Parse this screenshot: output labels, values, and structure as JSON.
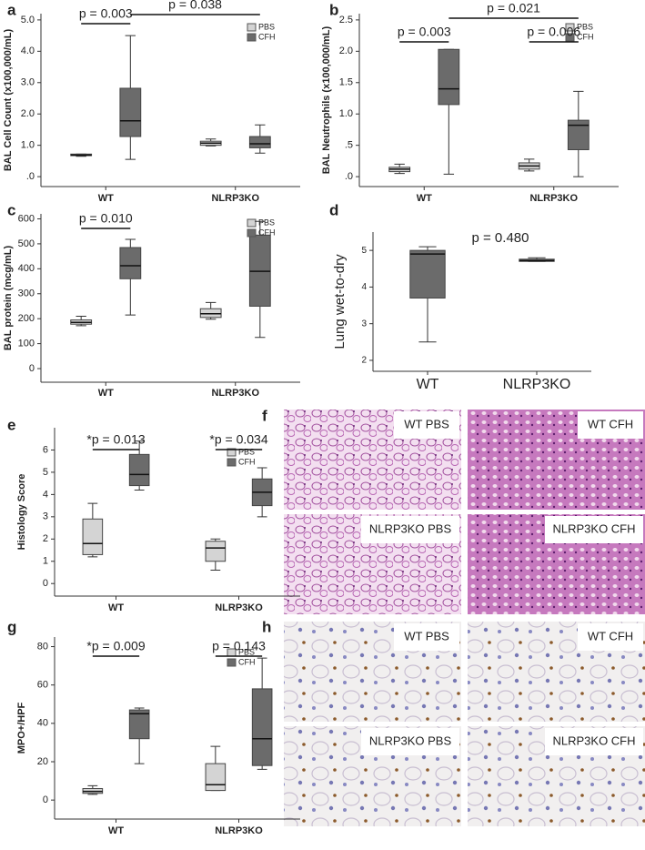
{
  "chart_data": [
    {
      "type": "box",
      "panel": "a",
      "ylabel": "BAL Cell Count (x100,000/mL)",
      "categories": [
        "WT",
        "NLRP3KO"
      ],
      "series": [
        {
          "name": "PBS",
          "color": "#d4d4d4",
          "values": [
            {
              "min": 0.65,
              "q1": 0.67,
              "median": 0.69,
              "q3": 0.72,
              "max": 0.72
            },
            {
              "min": 0.98,
              "q1": 1.0,
              "median": 1.07,
              "q3": 1.13,
              "max": 1.2
            }
          ]
        },
        {
          "name": "CFH",
          "color": "#6b6b6b",
          "values": [
            {
              "min": 0.55,
              "q1": 1.28,
              "median": 1.78,
              "q3": 2.82,
              "max": 4.5
            },
            {
              "min": 0.75,
              "q1": 0.92,
              "median": 1.05,
              "q3": 1.28,
              "max": 1.65
            }
          ]
        }
      ],
      "annotations": [
        "p = 0.003",
        "p = 0.038"
      ],
      "ylim": [
        -0.2,
        5.2
      ],
      "yticks": [
        {
          "value": 0,
          "label": ".0"
        },
        {
          "value": 1,
          "label": "1.0"
        },
        {
          "value": 2,
          "label": "2.0"
        },
        {
          "value": 3,
          "label": "3.0"
        },
        {
          "value": 4,
          "label": "4.0"
        },
        {
          "value": 5,
          "label": "5.0"
        }
      ]
    },
    {
      "type": "box",
      "panel": "b",
      "ylabel": "BAL Neutrophils (x100,000/mL)",
      "categories": [
        "WT",
        "NLRP3KO"
      ],
      "series": [
        {
          "name": "PBS",
          "color": "#d4d4d4",
          "values": [
            {
              "min": 0.05,
              "q1": 0.08,
              "median": 0.12,
              "q3": 0.15,
              "max": 0.2
            },
            {
              "min": 0.09,
              "q1": 0.12,
              "median": 0.17,
              "q3": 0.22,
              "max": 0.28
            }
          ]
        },
        {
          "name": "CFH",
          "color": "#6b6b6b",
          "values": [
            {
              "min": 0.04,
              "q1": 1.15,
              "median": 1.4,
              "q3": 2.03,
              "max": 2.03
            },
            {
              "min": 0.0,
              "q1": 0.43,
              "median": 0.82,
              "q3": 0.9,
              "max": 1.36
            }
          ]
        }
      ],
      "annotations": [
        "p = 0.003",
        "p = 0.006",
        "p = 0.021"
      ],
      "ylim": [
        -0.1,
        2.6
      ],
      "yticks": [
        {
          "value": 0,
          "label": ".0"
        },
        {
          "value": 0.5,
          "label": ".5"
        },
        {
          "value": 1,
          "label": "1.0"
        },
        {
          "value": 1.5,
          "label": "1.5"
        },
        {
          "value": 2,
          "label": "2.0"
        },
        {
          "value": 2.5,
          "label": "2.5"
        }
      ]
    },
    {
      "type": "box",
      "panel": "c",
      "ylabel": "BAL protein (mcg/mL)",
      "categories": [
        "WT",
        "NLRP3KO"
      ],
      "series": [
        {
          "name": "PBS",
          "color": "#d4d4d4",
          "values": [
            {
              "min": 172,
              "q1": 178,
              "median": 185,
              "q3": 195,
              "max": 210
            },
            {
              "min": 198,
              "q1": 205,
              "median": 220,
              "q3": 240,
              "max": 265
            }
          ]
        },
        {
          "name": "CFH",
          "color": "#6b6b6b",
          "values": [
            {
              "min": 215,
              "q1": 360,
              "median": 412,
              "q3": 485,
              "max": 518
            },
            {
              "min": 125,
              "q1": 250,
              "median": 390,
              "q3": 535,
              "max": 590
            }
          ]
        }
      ],
      "annotations": [
        "p = 0.010"
      ],
      "ylim": [
        -40,
        620
      ],
      "yticks": [
        0,
        100,
        200,
        300,
        400,
        500,
        600
      ]
    },
    {
      "type": "box",
      "panel": "d",
      "ylabel": "Lung wet-to-dry",
      "categories": [
        "WT",
        "NLRP3KO"
      ],
      "series": [
        {
          "color": "#6b6b6b",
          "values": [
            {
              "min": 2.5,
              "q1": 3.7,
              "median": 4.9,
              "q3": 5.0,
              "max": 5.1
            },
            {
              "min": 4.7,
              "q1": 4.7,
              "median": 4.72,
              "q3": 4.76,
              "max": 4.8
            }
          ]
        }
      ],
      "annotations": [
        "p = 0.480"
      ],
      "ylim": [
        1.8,
        5.5
      ],
      "yticks": [
        2,
        3,
        4,
        5
      ]
    },
    {
      "type": "box",
      "panel": "e",
      "ylabel": "Histology Score",
      "categories": [
        "WT",
        "NLRP3KO"
      ],
      "series": [
        {
          "name": "PBS",
          "color": "#d4d4d4",
          "values": [
            {
              "min": 1.2,
              "q1": 1.3,
              "median": 1.8,
              "q3": 2.9,
              "max": 3.6
            },
            {
              "min": 0.6,
              "q1": 1.0,
              "median": 1.6,
              "q3": 1.9,
              "max": 2.0
            }
          ]
        },
        {
          "name": "CFH",
          "color": "#6b6b6b",
          "values": [
            {
              "min": 4.2,
              "q1": 4.4,
              "median": 4.9,
              "q3": 5.8,
              "max": 6.4
            },
            {
              "min": 3.0,
              "q1": 3.5,
              "median": 4.1,
              "q3": 4.7,
              "max": 5.2
            }
          ]
        }
      ],
      "annotations": [
        "*p = 0.013",
        "*p = 0.034"
      ],
      "ylim": [
        -0.4,
        7
      ],
      "yticks": [
        0,
        1,
        2,
        3,
        4,
        5,
        6
      ]
    },
    {
      "type": "box",
      "panel": "g",
      "ylabel": "MPO+/HPF",
      "categories": [
        "WT",
        "NLRP3KO"
      ],
      "series": [
        {
          "name": "PBS",
          "color": "#d4d4d4",
          "values": [
            {
              "min": 3,
              "q1": 3.5,
              "median": 4.5,
              "q3": 6,
              "max": 7.5
            },
            {
              "min": 5,
              "q1": 5,
              "median": 8,
              "q3": 19,
              "max": 28
            }
          ]
        },
        {
          "name": "CFH",
          "color": "#6b6b6b",
          "values": [
            {
              "min": 19,
              "q1": 32,
              "median": 45,
              "q3": 47,
              "max": 48
            },
            {
              "min": 16,
              "q1": 18,
              "median": 32,
              "q3": 58,
              "max": 74
            }
          ]
        }
      ],
      "annotations": [
        "*p = 0.009",
        "p = 0.143"
      ],
      "ylim": [
        -8,
        85
      ],
      "yticks": [
        0,
        20,
        40,
        60,
        80
      ]
    }
  ],
  "micrographs": [
    {
      "panel": "f",
      "labels": [
        "WT PBS",
        "WT CFH",
        "NLRP3KO PBS",
        "NLRP3KO CFH"
      ]
    },
    {
      "panel": "h",
      "labels": [
        "WT PBS",
        "WT CFH",
        "NLRP3KO PBS",
        "NLRP3KO CFH"
      ]
    }
  ]
}
